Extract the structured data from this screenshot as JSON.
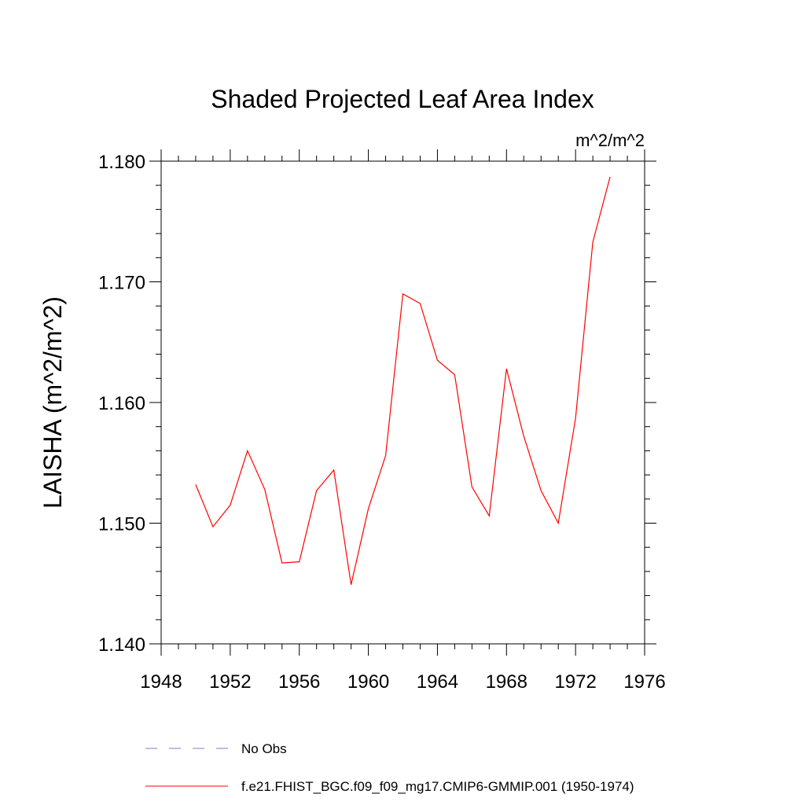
{
  "chart_data": {
    "type": "line",
    "title": "Shaded Projected Leaf Area Index",
    "units": "m^2/m^2",
    "ylabel": "LAISHA  (m^2/m^2)",
    "xlabel": "",
    "xlim": [
      1948,
      1976
    ],
    "ylim": [
      1.14,
      1.18
    ],
    "xticks": [
      1948,
      1952,
      1956,
      1960,
      1964,
      1968,
      1972,
      1976
    ],
    "yticks": [
      "1.140",
      "1.150",
      "1.160",
      "1.170",
      "1.180"
    ],
    "ytick_values": [
      1.14,
      1.15,
      1.16,
      1.17,
      1.18
    ],
    "grid": false,
    "series": [
      {
        "name": "f.e21.FHIST_BGC.f09_f09_mg17.CMIP6-GMMIP.001 (1950-1974)",
        "color": "#ff0000",
        "x": [
          1950,
          1951,
          1952,
          1953,
          1954,
          1955,
          1956,
          1957,
          1958,
          1959,
          1960,
          1961,
          1962,
          1963,
          1964,
          1965,
          1966,
          1967,
          1968,
          1969,
          1970,
          1971,
          1972,
          1973,
          1974
        ],
        "values": [
          1.1532,
          1.1497,
          1.1515,
          1.156,
          1.1528,
          1.1467,
          1.1468,
          1.1527,
          1.1544,
          1.1449,
          1.1512,
          1.1556,
          1.169,
          1.1682,
          1.1635,
          1.1623,
          1.153,
          1.1506,
          1.1628,
          1.1572,
          1.1527,
          1.15,
          1.1587,
          1.1733,
          1.1787
        ]
      }
    ],
    "legend": [
      {
        "label": "No Obs",
        "style": "dashed",
        "color": "#7b7bd6"
      },
      {
        "label": "f.e21.FHIST_BGC.f09_f09_mg17.CMIP6-GMMIP.001 (1950-1974)",
        "style": "solid",
        "color": "#ff0000"
      }
    ],
    "legend_position": "bottom"
  }
}
